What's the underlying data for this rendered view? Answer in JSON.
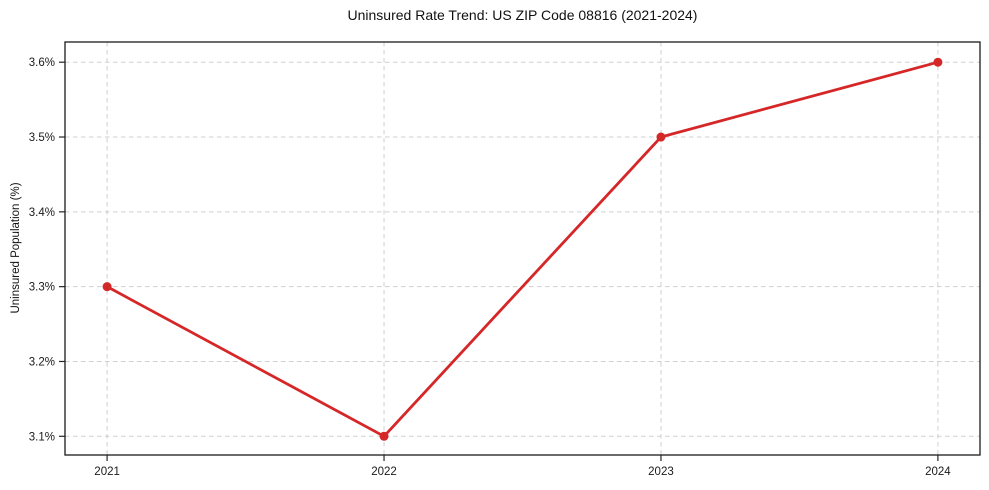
{
  "chart_data": {
    "type": "line",
    "title": "Uninsured Rate Trend: US ZIP Code 08816 (2021-2024)",
    "xlabel": "",
    "ylabel": "Uninsured Population (%)",
    "categories": [
      "2021",
      "2022",
      "2023",
      "2024"
    ],
    "x": [
      2021,
      2022,
      2023,
      2024
    ],
    "values": [
      3.3,
      3.1,
      3.5,
      3.6
    ],
    "yticks": [
      3.1,
      3.2,
      3.3,
      3.4,
      3.5,
      3.6
    ],
    "ytick_labels": [
      "3.1%",
      "3.2%",
      "3.3%",
      "3.4%",
      "3.5%",
      "3.6%"
    ],
    "xlim": [
      2020.848,
      2024.152
    ],
    "ylim": [
      3.075,
      3.627
    ],
    "grid": true,
    "legend": "none",
    "line_color": "#d62728",
    "marker_color": "#d62728",
    "grid_color": "#cfcfcf",
    "spine_color": "#1b1b1b"
  }
}
